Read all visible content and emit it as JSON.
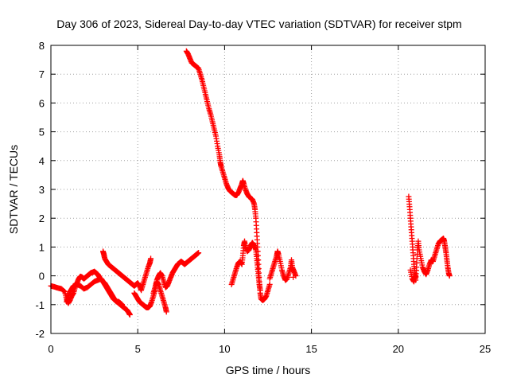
{
  "chart_data": {
    "type": "scatter",
    "title": "Day 306 of 2023, Sidereal Day-to-day VTEC variation (SDTVAR) for receiver stpm",
    "xlabel": "GPS time / hours",
    "ylabel": "SDTVAR / TECUs",
    "xlim": [
      0,
      25
    ],
    "ylim": [
      -2,
      8
    ],
    "x_ticks": [
      "0",
      "5",
      "10",
      "15",
      "20",
      "25"
    ],
    "y_ticks": [
      "-2",
      "-1",
      "0",
      "1",
      "2",
      "3",
      "4",
      "5",
      "6",
      "7",
      "8"
    ],
    "grid": true,
    "marker": "+",
    "series_color": "#ff0000",
    "series": [
      {
        "points": [
          [
            0.0,
            -0.35
          ],
          [
            0.2,
            -0.38
          ],
          [
            0.4,
            -0.42
          ],
          [
            0.6,
            -0.45
          ],
          [
            0.8,
            -0.55
          ],
          [
            0.9,
            -0.8
          ],
          [
            1.0,
            -0.95
          ],
          [
            1.1,
            -0.85
          ],
          [
            1.2,
            -0.7
          ],
          [
            1.3,
            -0.6
          ],
          [
            1.4,
            -0.4
          ],
          [
            1.5,
            -0.25
          ],
          [
            1.6,
            -0.1
          ],
          [
            1.7,
            -0.02
          ],
          [
            1.8,
            -0.05
          ],
          [
            1.9,
            -0.1
          ],
          [
            2.0,
            -0.05
          ],
          [
            2.1,
            0.0
          ],
          [
            2.2,
            0.05
          ],
          [
            2.3,
            0.1
          ],
          [
            2.4,
            0.12
          ],
          [
            2.5,
            0.15
          ],
          [
            2.6,
            0.1
          ],
          [
            2.7,
            0.05
          ],
          [
            2.8,
            -0.05
          ],
          [
            2.9,
            -0.15
          ],
          [
            3.0,
            -0.2
          ],
          [
            3.1,
            -0.25
          ],
          [
            3.2,
            -0.35
          ],
          [
            3.3,
            -0.45
          ],
          [
            3.4,
            -0.55
          ],
          [
            3.5,
            -0.65
          ],
          [
            3.6,
            -0.75
          ],
          [
            3.7,
            -0.85
          ],
          [
            3.8,
            -0.9
          ],
          [
            3.9,
            -0.95
          ],
          [
            4.0,
            -1.0
          ],
          [
            4.1,
            -1.05
          ],
          [
            4.2,
            -1.1
          ],
          [
            4.3,
            -1.15
          ],
          [
            4.4,
            -1.2
          ],
          [
            4.5,
            -1.3
          ],
          [
            4.55,
            -1.35
          ],
          [
            0.9,
            -0.9
          ],
          [
            1.0,
            -0.7
          ],
          [
            1.1,
            -0.55
          ],
          [
            1.2,
            -0.45
          ],
          [
            1.3,
            -0.35
          ],
          [
            1.5,
            -0.3
          ],
          [
            1.7,
            -0.35
          ],
          [
            1.9,
            -0.45
          ],
          [
            2.1,
            -0.4
          ],
          [
            2.3,
            -0.3
          ],
          [
            2.5,
            -0.2
          ],
          [
            2.7,
            -0.15
          ],
          [
            2.9,
            -0.1
          ],
          [
            3.0,
            -0.2
          ],
          [
            3.1,
            -0.3
          ],
          [
            3.2,
            -0.4
          ],
          [
            3.3,
            -0.5
          ],
          [
            3.4,
            -0.6
          ],
          [
            3.5,
            -0.7
          ],
          [
            3.6,
            -0.8
          ],
          [
            3.7,
            -0.85
          ],
          [
            3.8,
            -0.9
          ],
          [
            3.9,
            -0.9
          ],
          [
            4.0,
            -0.95
          ],
          [
            4.1,
            -1.0
          ],
          [
            3.0,
            0.85
          ],
          [
            3.05,
            0.75
          ],
          [
            3.1,
            0.6
          ],
          [
            3.2,
            0.5
          ],
          [
            3.3,
            0.4
          ],
          [
            3.4,
            0.35
          ],
          [
            3.5,
            0.3
          ],
          [
            3.6,
            0.25
          ],
          [
            3.7,
            0.2
          ],
          [
            3.8,
            0.15
          ],
          [
            3.9,
            0.1
          ],
          [
            4.0,
            0.05
          ],
          [
            4.1,
            0.0
          ],
          [
            4.2,
            -0.05
          ],
          [
            4.3,
            -0.1
          ],
          [
            4.4,
            -0.15
          ],
          [
            4.5,
            -0.2
          ],
          [
            4.6,
            -0.25
          ],
          [
            4.7,
            -0.3
          ],
          [
            4.8,
            -0.35
          ],
          [
            4.9,
            -0.3
          ],
          [
            5.0,
            -0.25
          ],
          [
            5.1,
            -0.35
          ],
          [
            5.2,
            -0.5
          ],
          [
            5.3,
            -0.3
          ],
          [
            5.4,
            -0.1
          ],
          [
            5.5,
            0.1
          ],
          [
            5.6,
            0.3
          ],
          [
            5.7,
            0.45
          ],
          [
            5.75,
            0.6
          ],
          [
            4.8,
            -0.6
          ],
          [
            4.9,
            -0.7
          ],
          [
            5.0,
            -0.8
          ],
          [
            5.1,
            -0.9
          ],
          [
            5.2,
            -0.95
          ],
          [
            5.3,
            -1.0
          ],
          [
            5.4,
            -1.05
          ],
          [
            5.5,
            -1.1
          ],
          [
            5.6,
            -1.1
          ],
          [
            5.7,
            -1.05
          ],
          [
            5.8,
            -0.9
          ],
          [
            5.9,
            -0.7
          ],
          [
            6.0,
            -0.5
          ],
          [
            6.05,
            -0.3
          ],
          [
            6.1,
            -0.2
          ],
          [
            6.2,
            -0.3
          ],
          [
            6.3,
            -0.5
          ],
          [
            6.4,
            -0.7
          ],
          [
            6.5,
            -0.9
          ],
          [
            6.6,
            -1.1
          ],
          [
            6.65,
            -1.25
          ],
          [
            5.9,
            -0.6
          ],
          [
            6.0,
            -0.4
          ],
          [
            6.1,
            -0.15
          ],
          [
            6.2,
            0.0
          ],
          [
            6.3,
            0.1
          ],
          [
            6.4,
            0.0
          ],
          [
            6.5,
            -0.2
          ],
          [
            6.6,
            -0.4
          ],
          [
            6.7,
            -0.35
          ],
          [
            6.8,
            -0.2
          ],
          [
            6.9,
            -0.05
          ],
          [
            7.0,
            0.1
          ],
          [
            7.1,
            0.2
          ],
          [
            7.2,
            0.3
          ],
          [
            7.3,
            0.4
          ],
          [
            7.4,
            0.45
          ],
          [
            7.5,
            0.5
          ],
          [
            7.6,
            0.45
          ],
          [
            7.7,
            0.4
          ],
          [
            7.8,
            0.45
          ],
          [
            7.9,
            0.5
          ],
          [
            8.0,
            0.55
          ],
          [
            8.1,
            0.6
          ],
          [
            8.2,
            0.65
          ],
          [
            8.3,
            0.7
          ],
          [
            8.4,
            0.75
          ],
          [
            8.5,
            0.8
          ],
          [
            7.8,
            7.8
          ],
          [
            7.9,
            7.7
          ],
          [
            8.0,
            7.55
          ],
          [
            8.1,
            7.4
          ],
          [
            8.2,
            7.35
          ],
          [
            8.3,
            7.3
          ],
          [
            8.4,
            7.25
          ],
          [
            8.5,
            7.2
          ],
          [
            8.6,
            7.0
          ],
          [
            8.7,
            6.8
          ],
          [
            8.8,
            6.55
          ],
          [
            8.9,
            6.3
          ],
          [
            9.0,
            6.05
          ],
          [
            9.1,
            5.8
          ],
          [
            9.2,
            5.6
          ],
          [
            9.3,
            5.35
          ],
          [
            9.4,
            5.1
          ],
          [
            9.5,
            4.85
          ],
          [
            9.6,
            4.5
          ],
          [
            9.7,
            4.2
          ],
          [
            9.75,
            3.95
          ],
          [
            9.8,
            3.8
          ],
          [
            9.9,
            3.6
          ],
          [
            10.0,
            3.4
          ],
          [
            10.1,
            3.2
          ],
          [
            10.2,
            3.05
          ],
          [
            10.3,
            2.95
          ],
          [
            10.4,
            2.9
          ],
          [
            10.5,
            2.85
          ],
          [
            10.6,
            2.8
          ],
          [
            10.7,
            2.8
          ],
          [
            10.8,
            2.9
          ],
          [
            10.9,
            3.05
          ],
          [
            11.0,
            3.2
          ],
          [
            11.05,
            3.3
          ],
          [
            11.1,
            3.2
          ],
          [
            11.2,
            3.0
          ],
          [
            11.3,
            2.85
          ],
          [
            11.4,
            2.75
          ],
          [
            11.5,
            2.7
          ],
          [
            11.6,
            2.65
          ],
          [
            11.7,
            2.5
          ],
          [
            11.75,
            2.3
          ],
          [
            11.8,
            2.0
          ],
          [
            11.85,
            1.5
          ],
          [
            11.9,
            1.0
          ],
          [
            11.95,
            0.4
          ],
          [
            12.0,
            -0.2
          ],
          [
            12.05,
            -0.6
          ],
          [
            12.1,
            -0.8
          ],
          [
            12.2,
            -0.85
          ],
          [
            12.3,
            -0.8
          ],
          [
            12.4,
            -0.7
          ],
          [
            12.5,
            -0.5
          ],
          [
            12.6,
            -0.3
          ],
          [
            10.4,
            -0.3
          ],
          [
            10.5,
            -0.1
          ],
          [
            10.6,
            0.1
          ],
          [
            10.7,
            0.3
          ],
          [
            10.8,
            0.45
          ],
          [
            10.9,
            0.5
          ],
          [
            11.0,
            0.4
          ],
          [
            11.05,
            0.7
          ],
          [
            11.1,
            1.05
          ],
          [
            11.15,
            1.2
          ],
          [
            11.2,
            1.0
          ],
          [
            11.3,
            0.85
          ],
          [
            11.4,
            0.9
          ],
          [
            11.5,
            1.05
          ],
          [
            11.6,
            1.15
          ],
          [
            11.7,
            1.05
          ],
          [
            11.8,
            0.9
          ],
          [
            11.85,
            0.6
          ],
          [
            11.9,
            0.3
          ],
          [
            11.95,
            0.0
          ],
          [
            12.0,
            -0.3
          ],
          [
            12.05,
            -0.5
          ],
          [
            12.6,
            -0.1
          ],
          [
            12.7,
            0.1
          ],
          [
            12.8,
            0.3
          ],
          [
            12.9,
            0.5
          ],
          [
            13.0,
            0.7
          ],
          [
            13.05,
            0.85
          ],
          [
            13.1,
            0.75
          ],
          [
            13.2,
            0.5
          ],
          [
            13.3,
            0.2
          ],
          [
            13.4,
            0.0
          ],
          [
            13.5,
            -0.15
          ],
          [
            13.6,
            -0.1
          ],
          [
            13.7,
            0.1
          ],
          [
            13.8,
            0.3
          ],
          [
            13.85,
            0.55
          ],
          [
            13.9,
            0.3
          ],
          [
            14.0,
            0.15
          ],
          [
            14.1,
            0.0
          ],
          [
            13.95,
            -0.05
          ],
          [
            20.6,
            2.75
          ],
          [
            20.65,
            2.4
          ],
          [
            20.7,
            2.0
          ],
          [
            20.75,
            1.6
          ],
          [
            20.8,
            1.2
          ],
          [
            20.85,
            0.8
          ],
          [
            20.9,
            0.4
          ],
          [
            20.95,
            0.1
          ],
          [
            21.0,
            -0.15
          ],
          [
            21.05,
            0.3
          ],
          [
            21.1,
            0.9
          ],
          [
            21.15,
            1.2
          ],
          [
            21.2,
            0.9
          ],
          [
            21.3,
            0.6
          ],
          [
            21.4,
            0.3
          ],
          [
            21.5,
            0.15
          ],
          [
            21.6,
            0.05
          ],
          [
            21.7,
            0.2
          ],
          [
            21.8,
            0.4
          ],
          [
            21.9,
            0.55
          ],
          [
            22.0,
            0.5
          ],
          [
            22.1,
            0.7
          ],
          [
            22.2,
            0.9
          ],
          [
            22.3,
            1.1
          ],
          [
            22.4,
            1.2
          ],
          [
            22.5,
            1.25
          ],
          [
            22.6,
            1.3
          ],
          [
            22.65,
            1.2
          ],
          [
            22.7,
            1.0
          ],
          [
            22.75,
            0.8
          ],
          [
            22.8,
            0.55
          ],
          [
            22.85,
            0.3
          ],
          [
            22.9,
            0.1
          ],
          [
            22.95,
            0.0
          ],
          [
            20.7,
            0.2
          ],
          [
            20.8,
            -0.1
          ],
          [
            20.9,
            -0.2
          ],
          [
            21.0,
            0.0
          ]
        ]
      }
    ]
  }
}
